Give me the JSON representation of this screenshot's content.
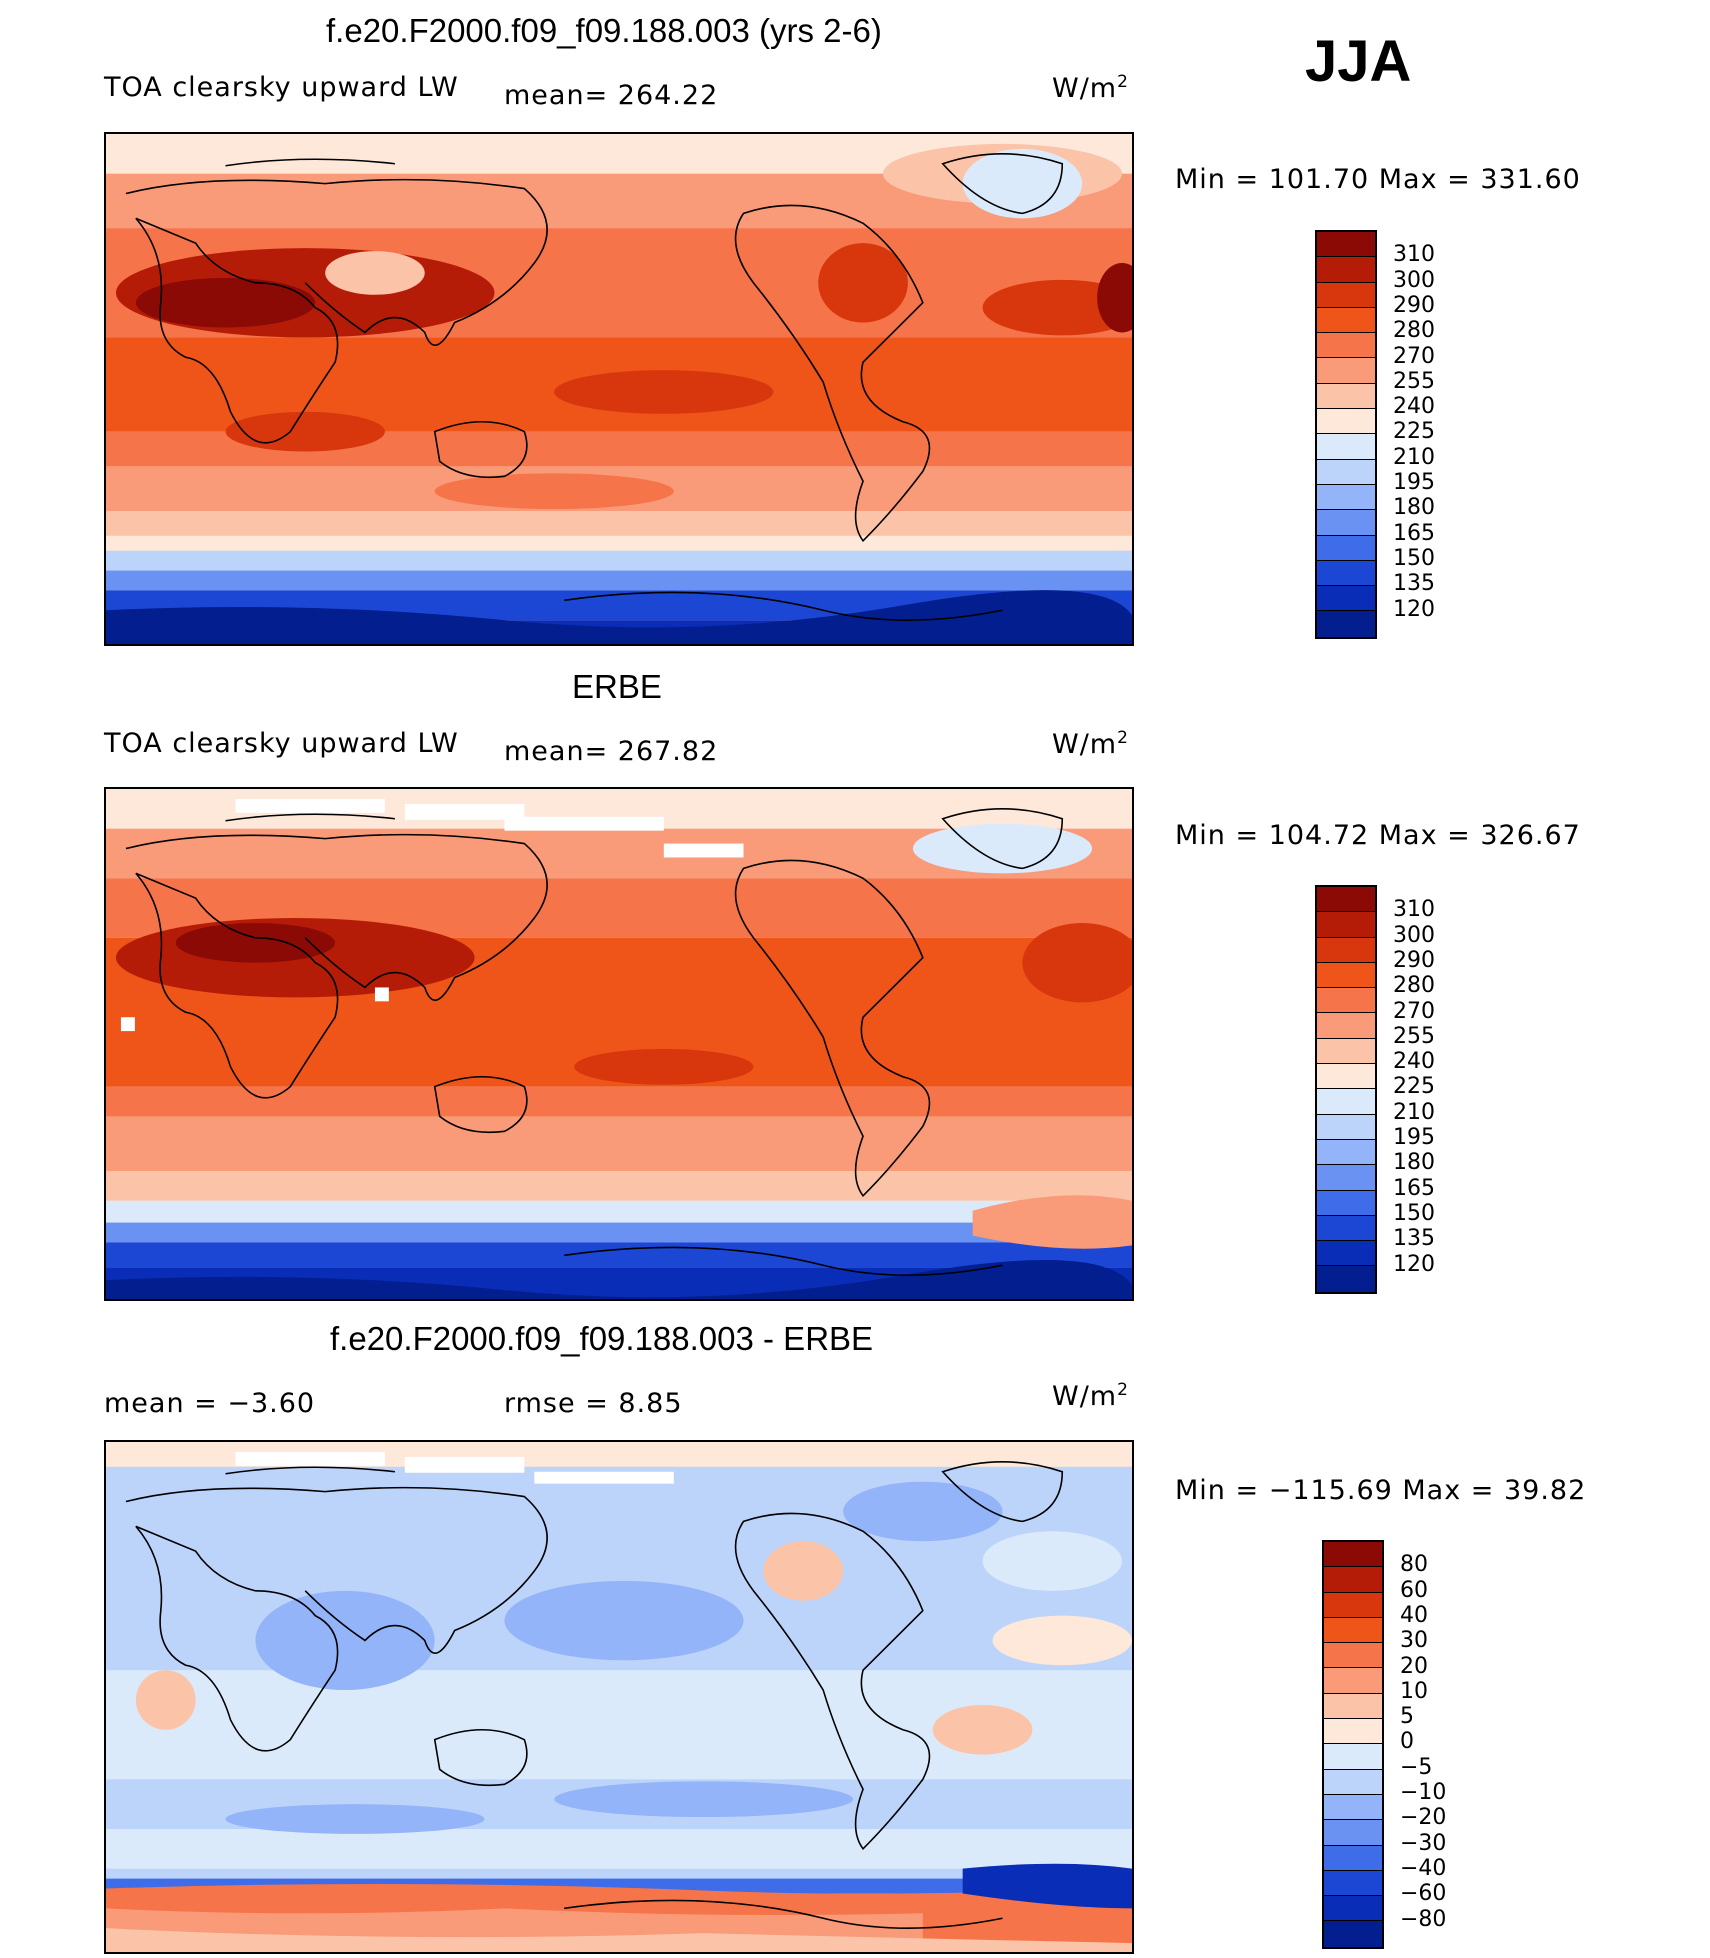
{
  "season": "JJA",
  "panels": [
    {
      "title": "f.e20.F2000.f09_f09.188.003 (yrs 2-6)",
      "left_label": "TOA clearsky upward LW",
      "mean_label": "mean= 264.22",
      "units": "W/m",
      "units_sup": "2",
      "minmax": "Min = 101.70 Max = 331.60"
    },
    {
      "title": "ERBE",
      "left_label": "TOA clearsky upward LW",
      "mean_label": "mean= 267.82",
      "units": "W/m",
      "units_sup": "2",
      "minmax": "Min = 104.72 Max = 326.67"
    },
    {
      "title": "f.e20.F2000.f09_f09.188.003 - ERBE",
      "left_label": "mean =   −3.60",
      "mean_label": "rmse =    8.85",
      "units": "W/m",
      "units_sup": "2",
      "minmax": "Min = −115.69 Max =   39.82"
    }
  ],
  "colorbar_abs": {
    "levels": [
      "310",
      "300",
      "290",
      "280",
      "270",
      "255",
      "240",
      "225",
      "210",
      "195",
      "180",
      "165",
      "150",
      "135",
      "120"
    ],
    "colors": [
      "#8b0a06",
      "#b51c08",
      "#d8360c",
      "#ef5418",
      "#f6744a",
      "#f99a78",
      "#fbc4a8",
      "#fde8da",
      "#dbeafb",
      "#bcd3fa",
      "#93b4f8",
      "#6a92f3",
      "#3f6de9",
      "#1c47d4",
      "#0a2db8",
      "#031e8f"
    ]
  },
  "colorbar_diff": {
    "levels": [
      "80",
      "60",
      "40",
      "30",
      "20",
      "10",
      "5",
      "0",
      "−5",
      "−10",
      "−20",
      "−30",
      "−40",
      "−60",
      "−80"
    ],
    "colors": [
      "#8b0a06",
      "#b51c08",
      "#d8360c",
      "#ef5418",
      "#f6744a",
      "#f99a78",
      "#fbc4a8",
      "#fde8da",
      "#dbeafb",
      "#bcd3fa",
      "#93b4f8",
      "#6a92f3",
      "#3f6de9",
      "#1c47d4",
      "#0a2db8",
      "#031e8f"
    ]
  }
}
